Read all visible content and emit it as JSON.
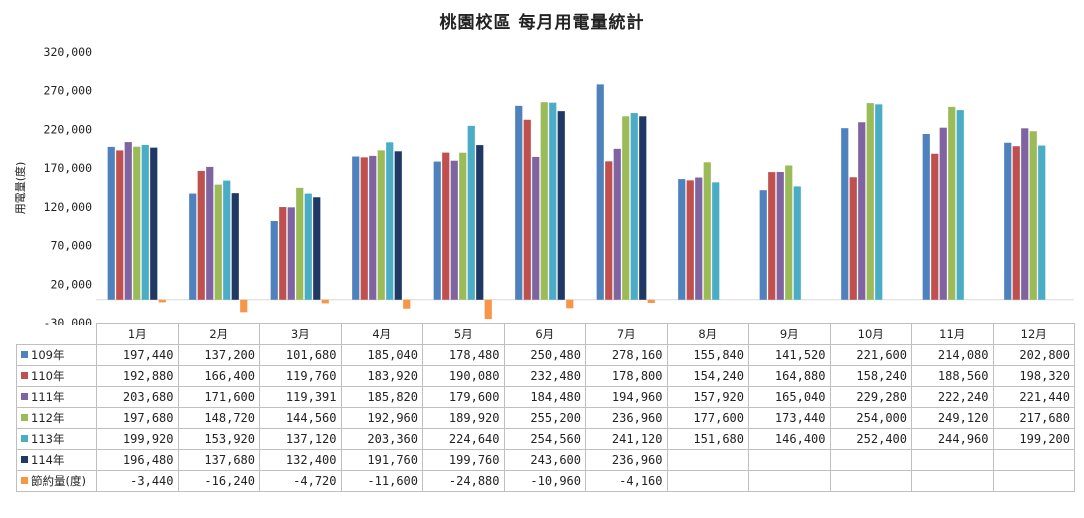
{
  "chart_data": {
    "type": "bar",
    "title": "桃園校區 每月用電量統計",
    "ylabel": "用電量(度)",
    "xlabel": "",
    "ylim": [
      -30000,
      320000
    ],
    "yticks": [
      "-30,000",
      "20,000",
      "70,000",
      "120,000",
      "170,000",
      "220,000",
      "270,000",
      "320,000"
    ],
    "ytick_values": [
      -30000,
      20000,
      70000,
      120000,
      170000,
      220000,
      270000,
      320000
    ],
    "grid": false,
    "legend": "data-table",
    "categories": [
      "1月",
      "2月",
      "3月",
      "4月",
      "5月",
      "6月",
      "7月",
      "8月",
      "9月",
      "10月",
      "11月",
      "12月"
    ],
    "series": [
      {
        "name": "109年",
        "color": "#4f81bd",
        "values": [
          197440,
          137200,
          101680,
          185040,
          178480,
          250480,
          278160,
          155840,
          141520,
          221600,
          214080,
          202800
        ],
        "labels": [
          "197,440",
          "137,200",
          "101,680",
          "185,040",
          "178,480",
          "250,480",
          "278,160",
          "155,840",
          "141,520",
          "221,600",
          "214,080",
          "202,800"
        ]
      },
      {
        "name": "110年",
        "color": "#c0504d",
        "values": [
          192880,
          166400,
          119760,
          183920,
          190080,
          232480,
          178800,
          154240,
          164880,
          158240,
          188560,
          198320
        ],
        "labels": [
          "192,880",
          "166,400",
          "119,760",
          "183,920",
          "190,080",
          "232,480",
          "178,800",
          "154,240",
          "164,880",
          "158,240",
          "188,560",
          "198,320"
        ]
      },
      {
        "name": "111年",
        "color": "#8064a2",
        "values": [
          203680,
          171600,
          119391,
          185820,
          179600,
          184480,
          194960,
          157920,
          165040,
          229280,
          222240,
          221440
        ],
        "labels": [
          "203,680",
          "171,600",
          "119,391",
          "185,820",
          "179,600",
          "184,480",
          "194,960",
          "157,920",
          "165,040",
          "229,280",
          "222,240",
          "221,440"
        ]
      },
      {
        "name": "112年",
        "color": "#9bbb59",
        "values": [
          197680,
          148720,
          144560,
          192960,
          189920,
          255200,
          236960,
          177600,
          173440,
          254000,
          249120,
          217680
        ],
        "labels": [
          "197,680",
          "148,720",
          "144,560",
          "192,960",
          "189,920",
          "255,200",
          "236,960",
          "177,600",
          "173,440",
          "254,000",
          "249,120",
          "217,680"
        ]
      },
      {
        "name": "113年",
        "color": "#4bacc6",
        "values": [
          199920,
          153920,
          137120,
          203360,
          224640,
          254560,
          241120,
          151680,
          146400,
          252400,
          244960,
          199200
        ],
        "labels": [
          "199,920",
          "153,920",
          "137,120",
          "203,360",
          "224,640",
          "254,560",
          "241,120",
          "151,680",
          "146,400",
          "252,400",
          "244,960",
          "199,200"
        ]
      },
      {
        "name": "114年",
        "color": "#1f3864",
        "values": [
          196480,
          137680,
          132400,
          191760,
          199760,
          243600,
          236960,
          null,
          null,
          null,
          null,
          null
        ],
        "labels": [
          "196,480",
          "137,680",
          "132,400",
          "191,760",
          "199,760",
          "243,600",
          "236,960",
          "",
          "",
          "",
          "",
          ""
        ]
      },
      {
        "name": "節約量(度)",
        "color": "#f79646",
        "values": [
          -3440,
          -16240,
          -4720,
          -11600,
          -24880,
          -10960,
          -4160,
          null,
          null,
          null,
          null,
          null
        ],
        "labels": [
          "-3,440",
          "-16,240",
          "-4,720",
          "-11,600",
          "-24,880",
          "-10,960",
          "-4,160",
          "",
          "",
          "",
          "",
          ""
        ]
      }
    ]
  }
}
